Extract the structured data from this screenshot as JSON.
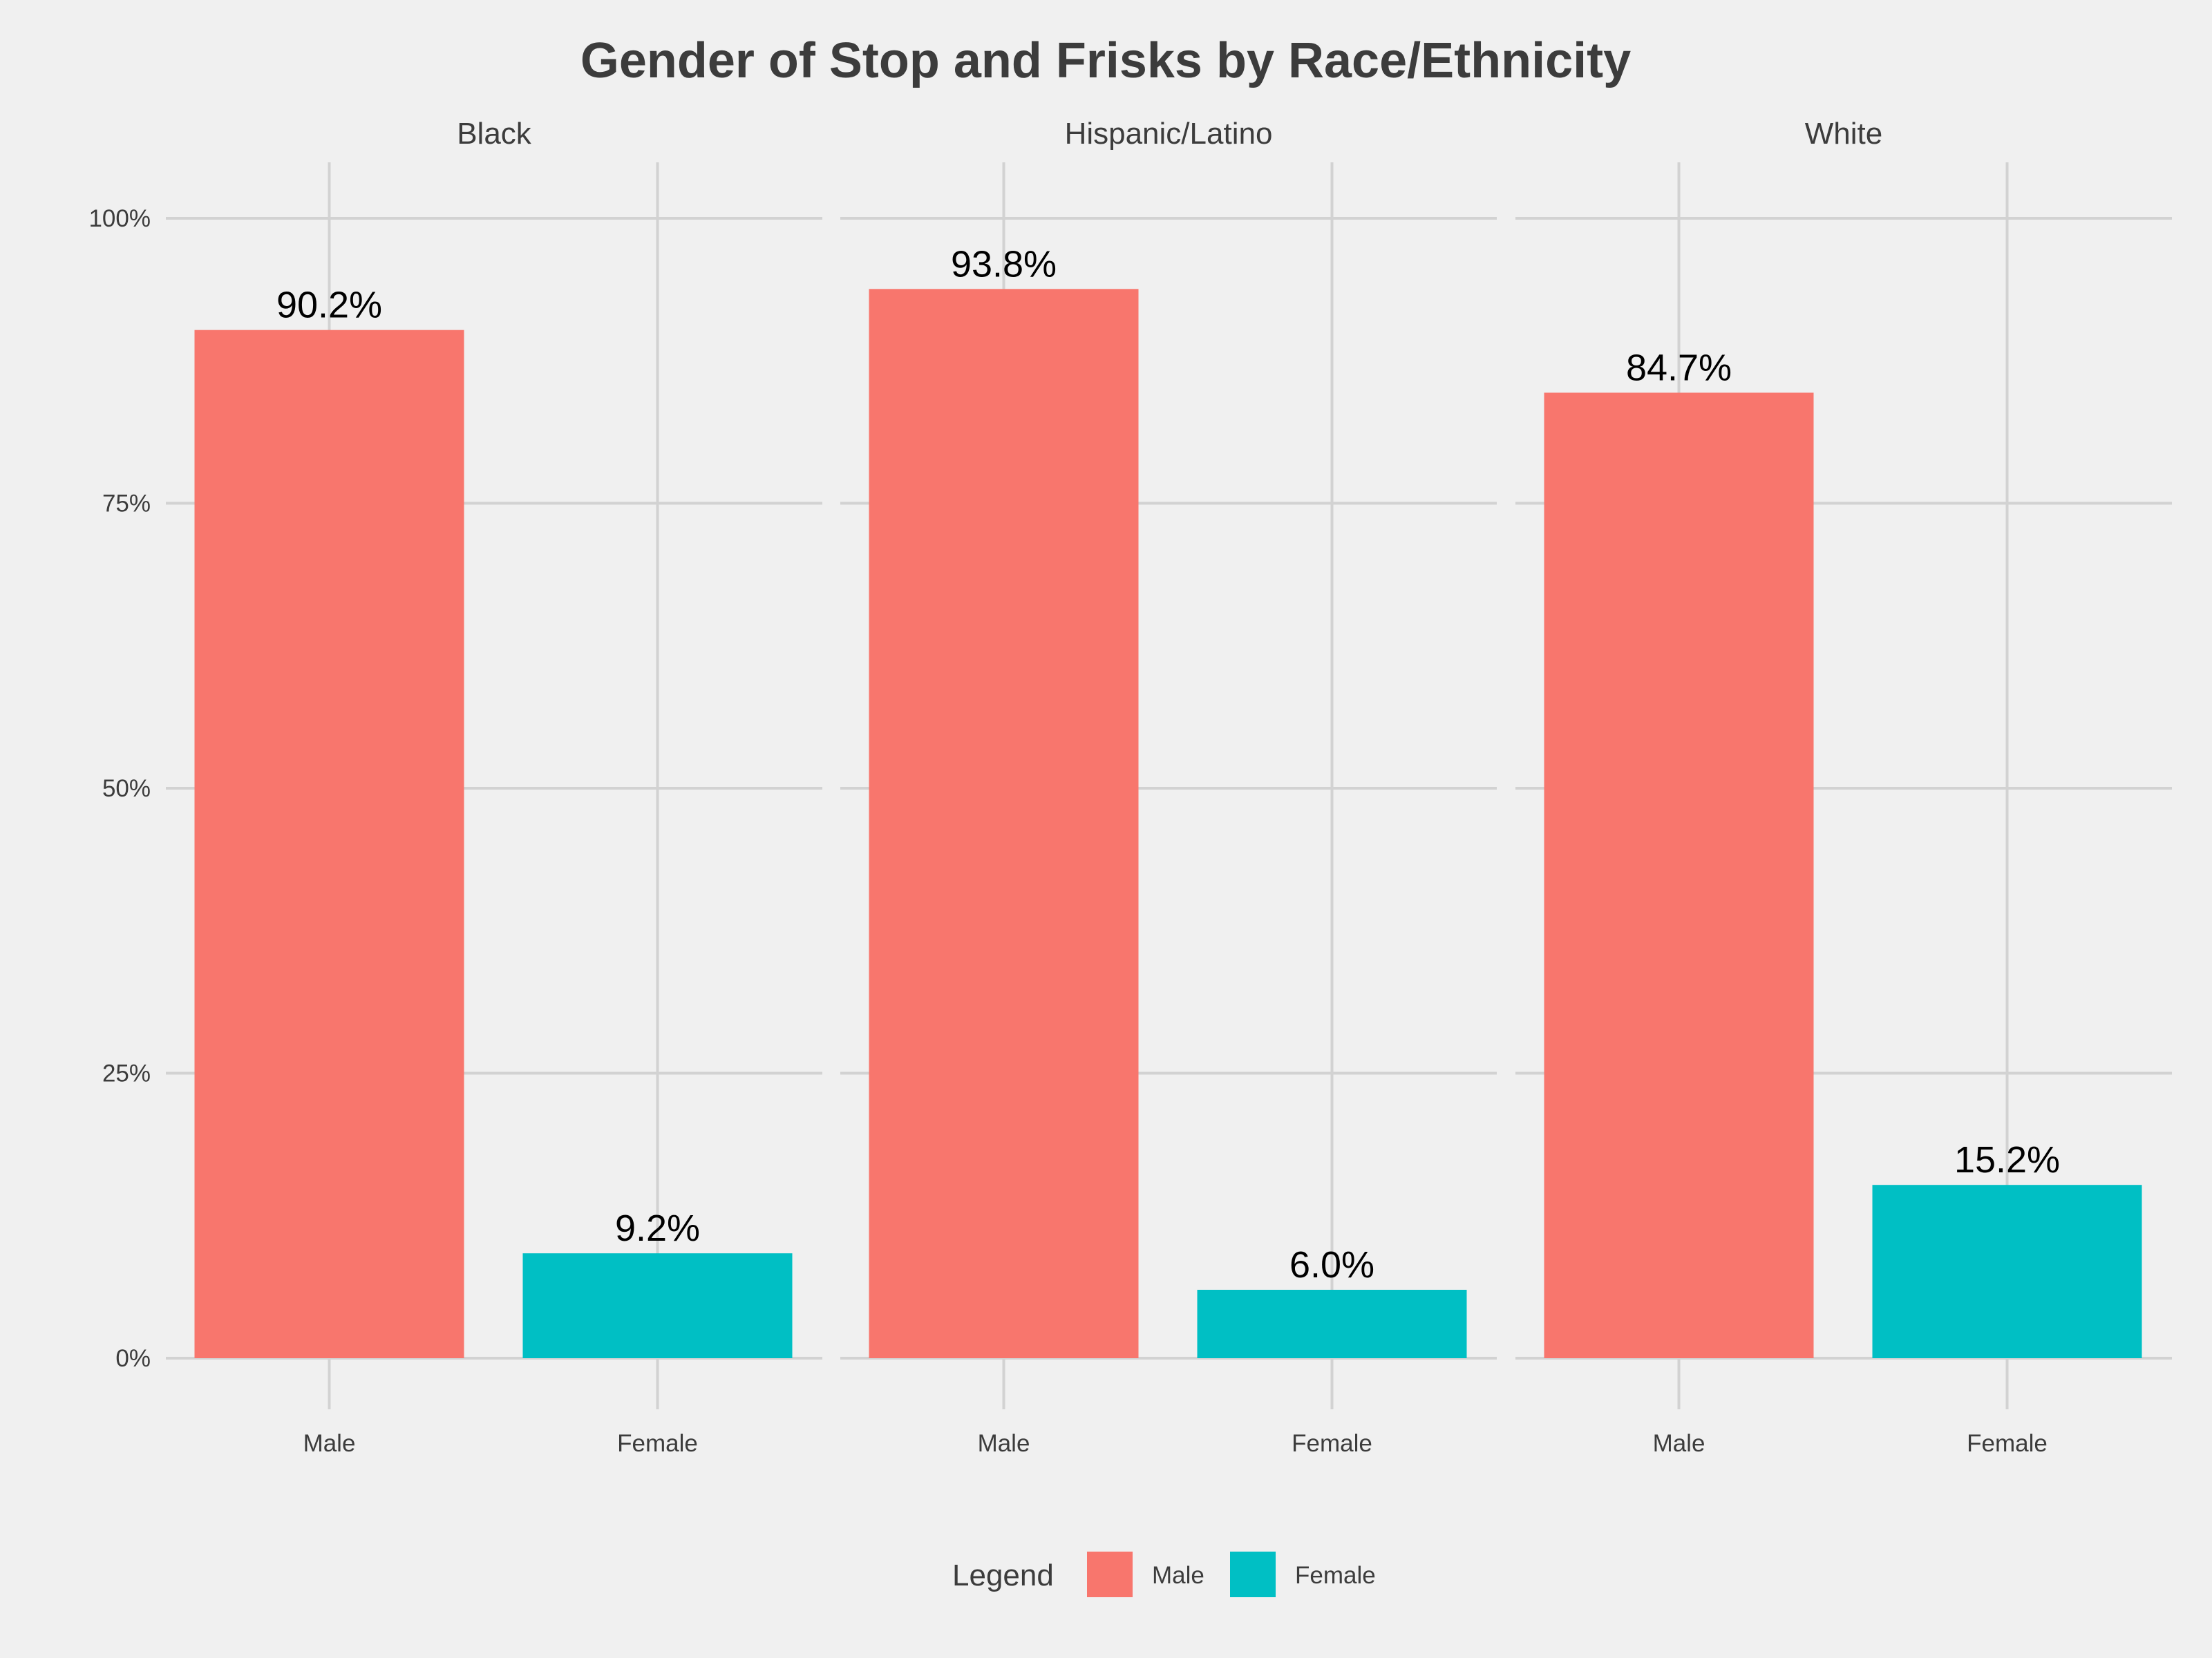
{
  "chart_data": {
    "type": "bar",
    "title": "Gender of Stop and Frisks by Race/Ethnicity",
    "xlabel": "",
    "ylabel": "",
    "ylim": [
      0,
      1.04
    ],
    "y_ticks": [
      {
        "value": 0,
        "label": "0%"
      },
      {
        "value": 0.25,
        "label": "25%"
      },
      {
        "value": 0.5,
        "label": "50%"
      },
      {
        "value": 0.75,
        "label": "75%"
      },
      {
        "value": 1.0,
        "label": "100%"
      }
    ],
    "categories": [
      "Male",
      "Female"
    ],
    "colors": {
      "Male": "#f8766d",
      "Female": "#00bfc4"
    },
    "grid": true,
    "legend": {
      "title": "Legend",
      "placement": "bottom",
      "entries": [
        "Male",
        "Female"
      ]
    },
    "facets": [
      {
        "name": "Black",
        "values": [
          0.902,
          0.092
        ],
        "labels": [
          "90.2%",
          "9.2%"
        ]
      },
      {
        "name": "Hispanic/Latino",
        "values": [
          0.938,
          0.06
        ],
        "labels": [
          "93.8%",
          "6.0%"
        ]
      },
      {
        "name": "White",
        "values": [
          0.847,
          0.152
        ],
        "labels": [
          "84.7%",
          "15.2%"
        ]
      }
    ]
  }
}
